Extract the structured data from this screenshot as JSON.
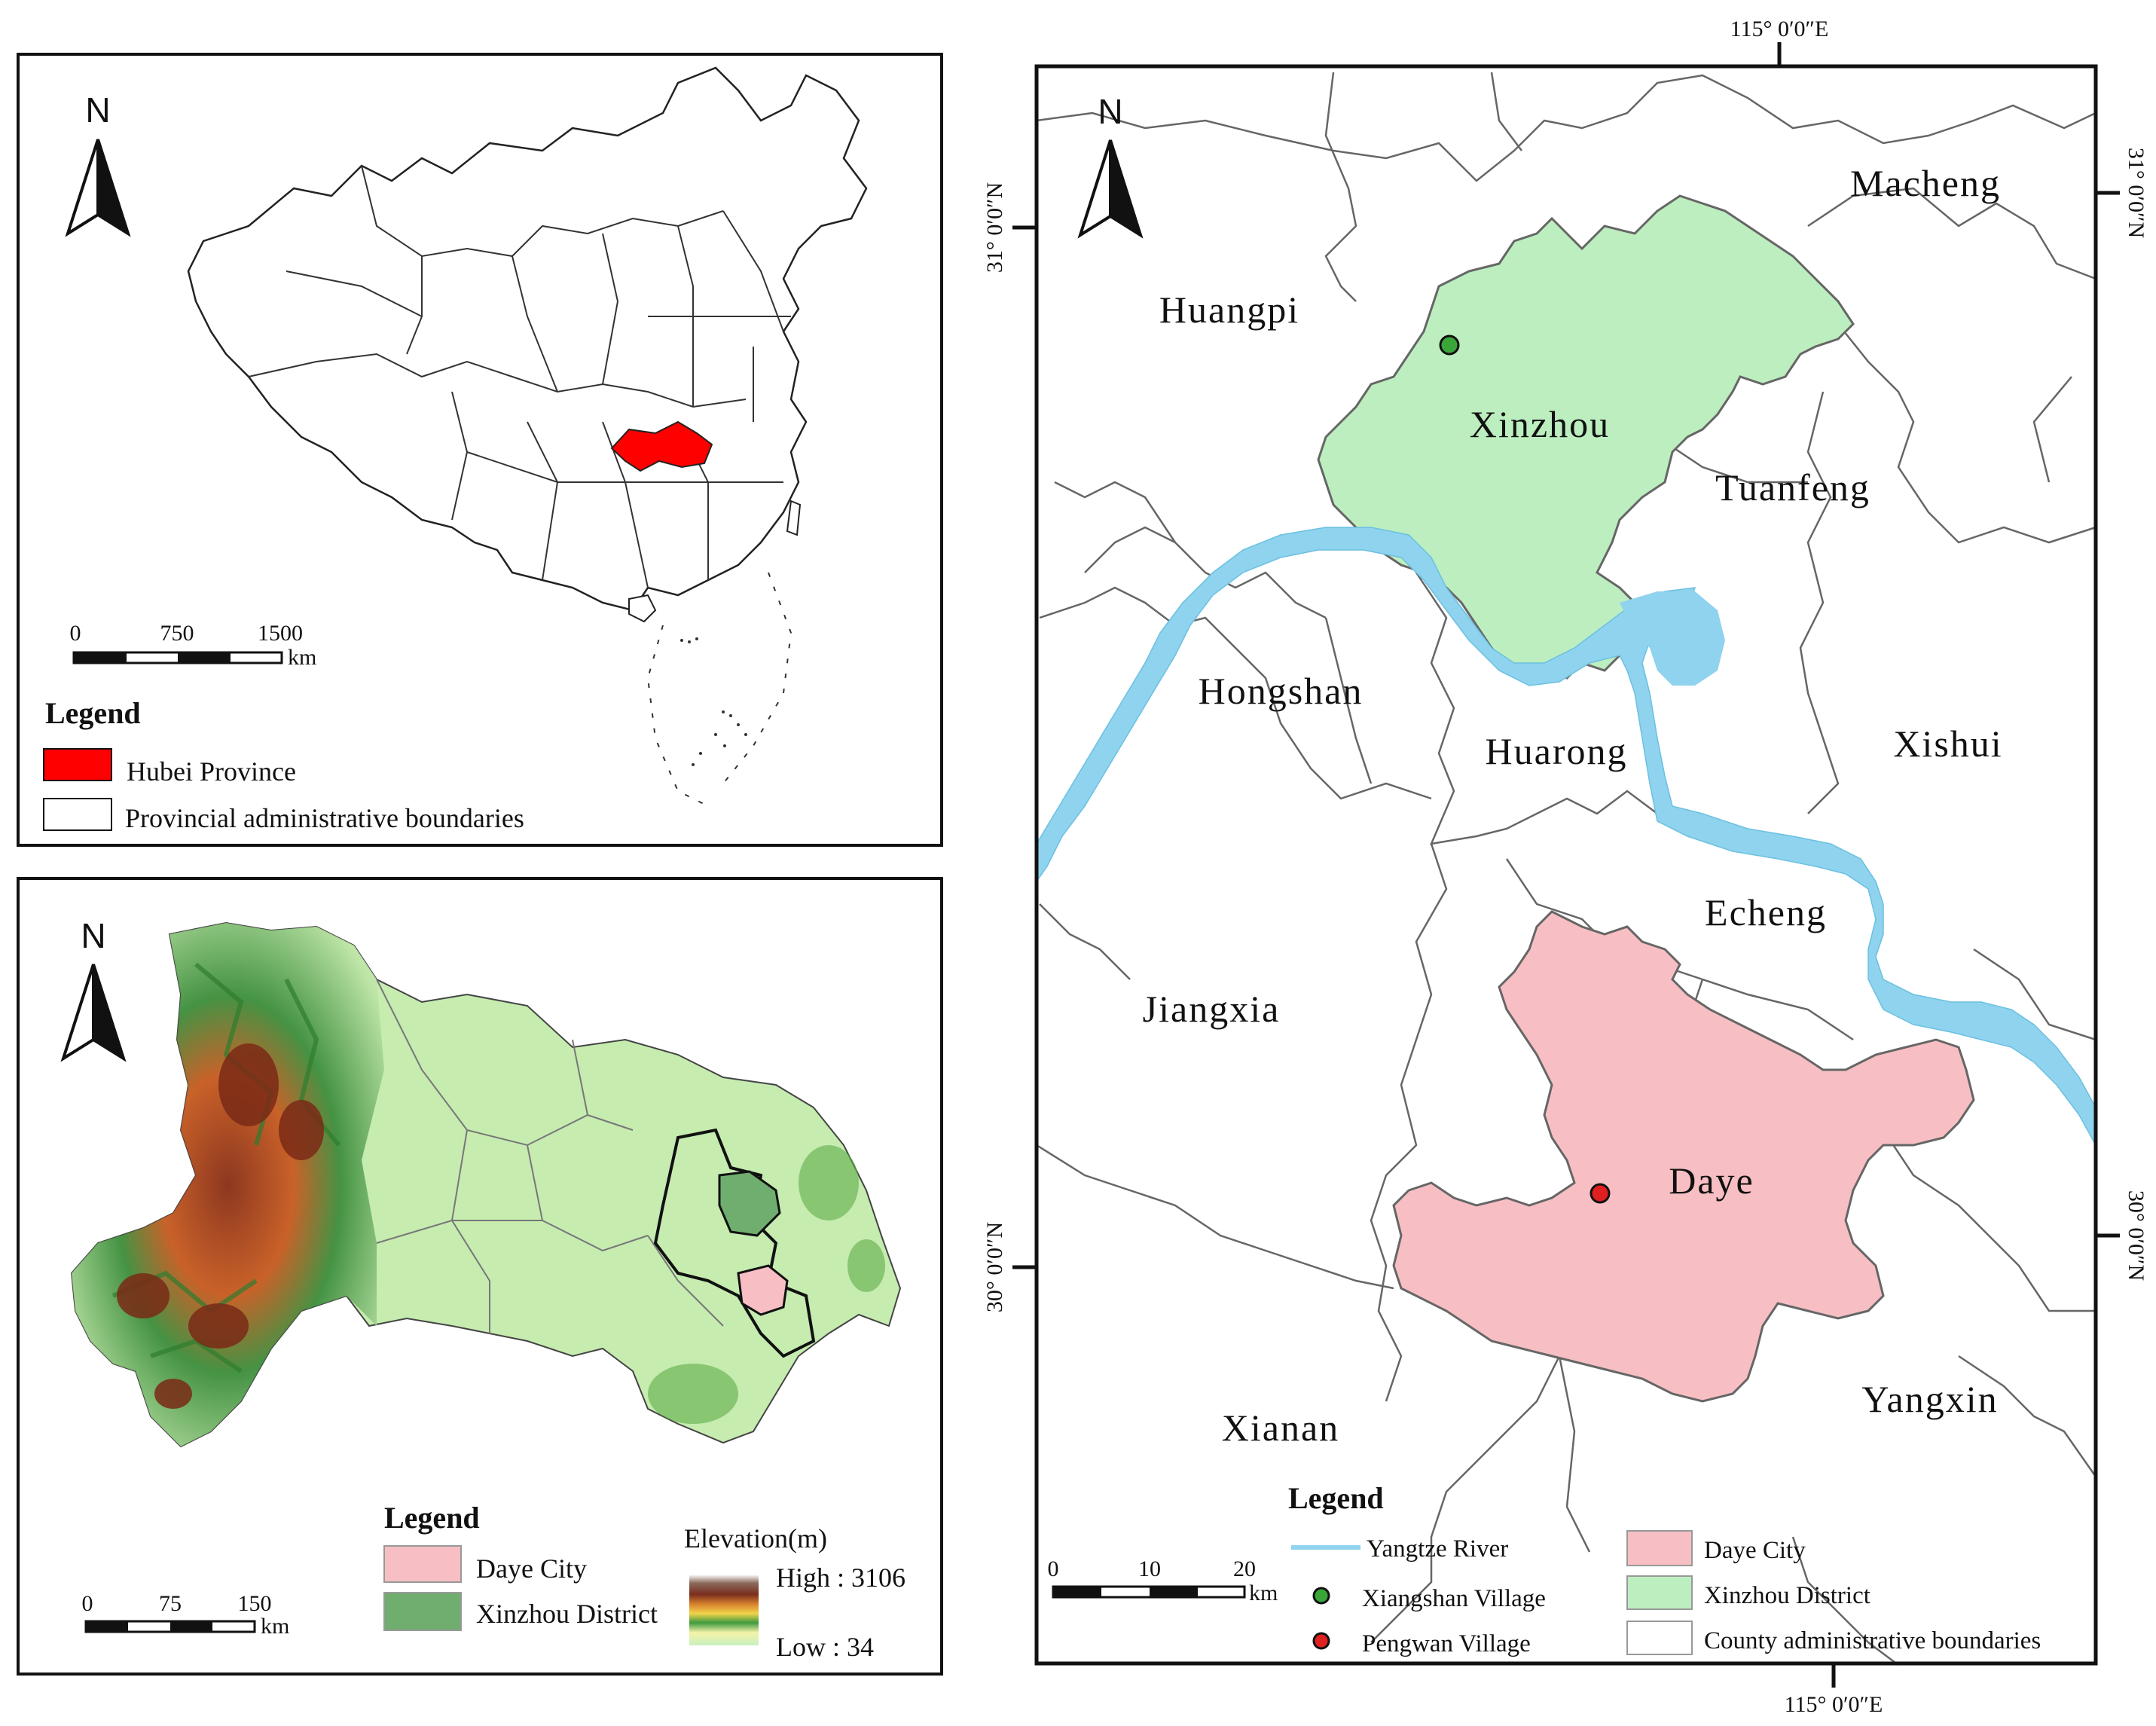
{
  "panel_china": {
    "north_label": "N",
    "scale": {
      "ticks": [
        "0",
        "750",
        "1500"
      ],
      "unit": "km"
    },
    "legend": {
      "title": "Legend",
      "items": [
        {
          "label": "Hubei Province",
          "color": "#ff0000"
        },
        {
          "label": "Provincial administrative boundaries",
          "color": "#ffffff"
        }
      ]
    }
  },
  "panel_hubei": {
    "north_label": "N",
    "scale": {
      "ticks": [
        "0",
        "75",
        "150"
      ],
      "unit": "km"
    },
    "legend": {
      "title": "Legend",
      "items": [
        {
          "label": "Daye City",
          "color": "#f7bfc3"
        },
        {
          "label": "Xinzhou District",
          "color": "#6fae6f"
        }
      ],
      "elevation": {
        "title": "Elevation(m)",
        "high": "High : 3106",
        "low": "Low : 34"
      }
    }
  },
  "panel_study": {
    "north_label": "N",
    "ticks": {
      "top_lon": "115° 0′0″E",
      "bottom_lon": "115° 0′0″E",
      "left_lat_1": "31° 0′0″N",
      "left_lat_2": "30° 0′0″N",
      "right_lat_1": "31° 0′0″N",
      "right_lat_2": "30° 0′0″N"
    },
    "places": {
      "macheng": "Macheng",
      "huangpi": "Huangpi",
      "xinzhou": "Xinzhou",
      "tuanfeng": "Tuanfeng",
      "hongshan": "Hongshan",
      "huarong": "Huarong",
      "xishui": "Xishui",
      "echeng": "Echeng",
      "jiangxia": "Jiangxia",
      "daye": "Daye",
      "xianan": "Xianan",
      "yangxin": "Yangxin"
    },
    "scale": {
      "ticks": [
        "0",
        "10",
        "20"
      ],
      "unit": "km"
    },
    "legend": {
      "title": "Legend",
      "items": [
        {
          "label": "Yangtze River",
          "color": "#8fd3ee"
        },
        {
          "label": "Xiangshan Village",
          "color": "#3aa63a"
        },
        {
          "label": "Pengwan Village",
          "color": "#e02020"
        },
        {
          "label": "Daye City",
          "color": "#f7bfc3"
        },
        {
          "label": "Xinzhou District",
          "color": "#bdeebf"
        },
        {
          "label": "County administrative boundaries",
          "color": "#ffffff"
        }
      ]
    }
  }
}
